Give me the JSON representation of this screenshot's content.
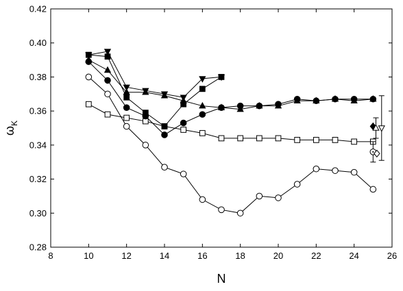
{
  "chart_data": {
    "type": "line",
    "xlabel": "N",
    "ylabel": "ω",
    "ylabel_subscript": "K",
    "xlim": [
      8,
      26
    ],
    "ylim": [
      0.28,
      0.42
    ],
    "x_ticks": [
      "8",
      "10",
      "12",
      "14",
      "16",
      "18",
      "20",
      "22",
      "24",
      "26"
    ],
    "y_ticks": [
      "0.28",
      "0.30",
      "0.32",
      "0.34",
      "0.36",
      "0.38",
      "0.40",
      "0.42"
    ],
    "grid": false,
    "series": [
      {
        "marker": "open-circle",
        "x": [
          10,
          11,
          12,
          13,
          14,
          15,
          16,
          17,
          18,
          19,
          20,
          21,
          22,
          23,
          24,
          25
        ],
        "y": [
          0.38,
          0.37,
          0.351,
          0.34,
          0.327,
          0.323,
          0.308,
          0.302,
          0.3,
          0.31,
          0.309,
          0.317,
          0.326,
          0.325,
          0.324,
          0.314
        ]
      },
      {
        "marker": "open-square",
        "x": [
          10,
          11,
          12,
          13,
          14,
          15,
          16,
          17,
          18,
          19,
          20,
          21,
          22,
          23,
          24,
          25
        ],
        "y": [
          0.364,
          0.358,
          0.356,
          0.354,
          0.351,
          0.349,
          0.347,
          0.344,
          0.344,
          0.344,
          0.344,
          0.343,
          0.343,
          0.343,
          0.342,
          0.342
        ]
      },
      {
        "marker": "filled-circle",
        "x": [
          10,
          11,
          12,
          13,
          14,
          15,
          16,
          17,
          18,
          19,
          20,
          21,
          22,
          23,
          24,
          25
        ],
        "y": [
          0.389,
          0.378,
          0.362,
          0.357,
          0.346,
          0.353,
          0.358,
          0.362,
          0.363,
          0.363,
          0.364,
          0.367,
          0.366,
          0.367,
          0.367,
          0.367
        ]
      },
      {
        "marker": "filled-triangle-up",
        "x": [
          10,
          11,
          12,
          13,
          14,
          15,
          16,
          17,
          18,
          19,
          20,
          21,
          22,
          23,
          24,
          25
        ],
        "y": [
          0.39,
          0.384,
          0.371,
          0.371,
          0.369,
          0.366,
          0.363,
          0.362,
          0.361,
          0.363,
          0.363,
          0.366,
          0.366,
          0.367,
          0.366,
          0.367
        ]
      },
      {
        "marker": "filled-square",
        "x": [
          10,
          11,
          12,
          13,
          14,
          15,
          16,
          17
        ],
        "y": [
          0.393,
          0.392,
          0.368,
          0.359,
          0.351,
          0.364,
          0.373,
          0.38
        ]
      },
      {
        "marker": "filled-triangle-down",
        "x": [
          10,
          11,
          12,
          13,
          14,
          15,
          16,
          17
        ],
        "y": [
          0.393,
          0.395,
          0.374,
          0.372,
          0.37,
          0.368,
          0.379,
          0.38
        ]
      }
    ],
    "extrapolated_points": [
      {
        "marker": "filled-diamond",
        "x": 25.0,
        "y": 0.351,
        "err": 0
      },
      {
        "marker": "open-triangle-up",
        "x": 25.15,
        "y": 0.35,
        "err": 0.006
      },
      {
        "marker": "open-triangle-down",
        "x": 25.45,
        "y": 0.35,
        "err": 0.019
      },
      {
        "marker": "open-circle-dot",
        "x": 25.0,
        "y": 0.336,
        "err": 0.006
      },
      {
        "marker": "open-diamond",
        "x": 25.2,
        "y": 0.335,
        "err": 0
      }
    ]
  }
}
